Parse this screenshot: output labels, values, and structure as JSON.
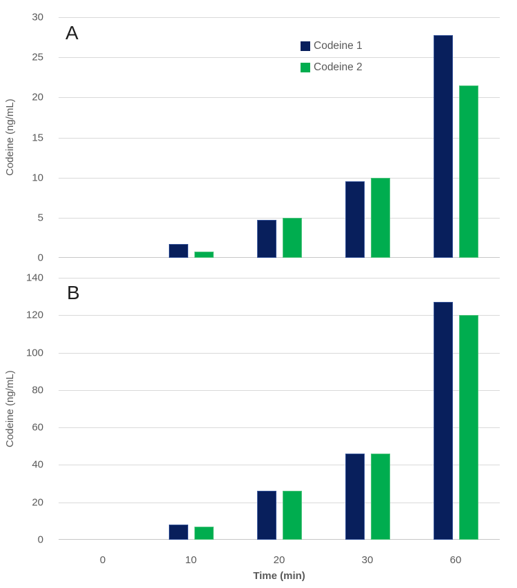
{
  "figure": {
    "panel_a_label": "A",
    "panel_b_label": "B"
  },
  "legend": {
    "items": [
      {
        "label": "Codeine 1",
        "color": "#081F5C"
      },
      {
        "label": "Codeine 2",
        "color": "#00AD4F"
      }
    ]
  },
  "chart_data": [
    {
      "type": "bar",
      "panel_label": "A",
      "ylabel": "Codeine (ng/mL)",
      "ylim": [
        0,
        30
      ],
      "yticks": [
        0,
        5,
        10,
        15,
        20,
        25,
        30
      ],
      "categories": [
        "0",
        "10",
        "20",
        "30",
        "60"
      ],
      "series": [
        {
          "name": "Codeine 1",
          "color": "#081F5C",
          "border": "#36549A",
          "values": [
            0,
            1.7,
            4.7,
            9.5,
            27.8
          ]
        },
        {
          "name": "Codeine 2",
          "color": "#00AD4F",
          "border": "#50C47E",
          "values": [
            0,
            0.8,
            5.0,
            10.0,
            21.5
          ]
        }
      ],
      "grid": true,
      "legend_position": "inside-top-center"
    },
    {
      "type": "bar",
      "panel_label": "B",
      "ylabel": "Codeine (ng/mL)",
      "xlabel": "Time (min)",
      "ylim": [
        0,
        140
      ],
      "yticks": [
        0,
        20,
        40,
        60,
        80,
        100,
        120,
        140
      ],
      "categories": [
        "0",
        "10",
        "20",
        "30",
        "60"
      ],
      "series": [
        {
          "name": "Codeine 1",
          "color": "#081F5C",
          "border": "#36549A",
          "values": [
            0,
            8,
            26,
            46,
            127
          ]
        },
        {
          "name": "Codeine 2",
          "color": "#00AD4F",
          "border": "#50C47E",
          "values": [
            0,
            7,
            26,
            46,
            120
          ]
        }
      ],
      "grid": true,
      "legend_position": "none"
    }
  ]
}
